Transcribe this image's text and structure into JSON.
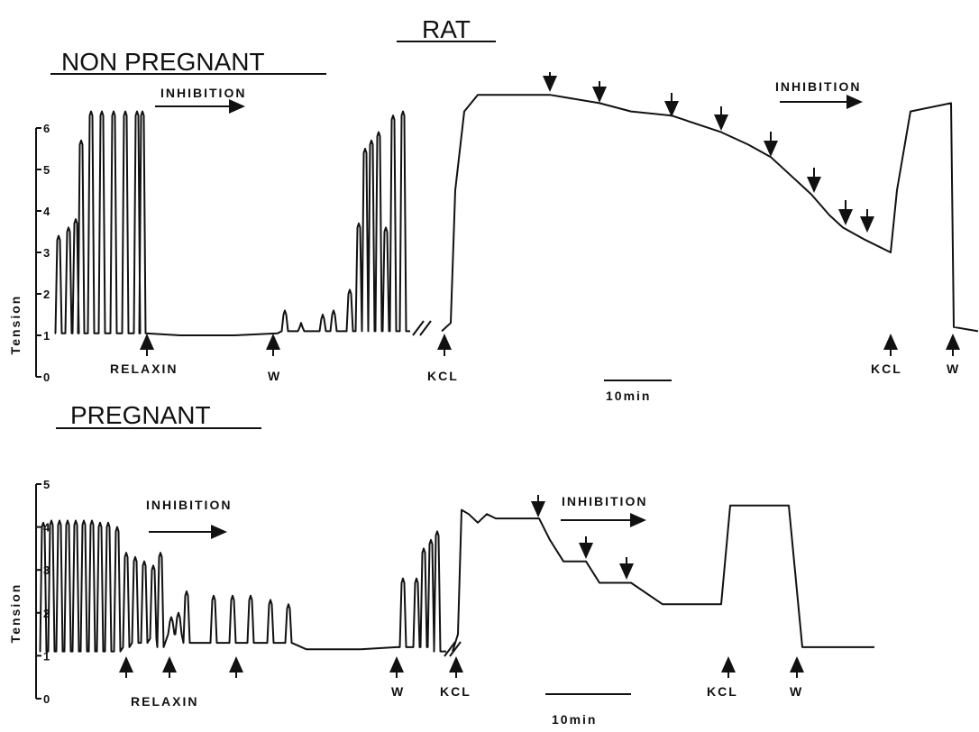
{
  "title": "RAT",
  "panels": [
    {
      "title": "NON PREGNANT",
      "y_label": "Tension",
      "yticks": [
        0,
        1,
        2,
        3,
        4,
        5,
        6
      ],
      "annotations": [
        "INHIBITION",
        "INHIBITION"
      ],
      "markers": [
        "RELAXIN",
        "W",
        "KCL",
        "KCL",
        "W"
      ],
      "scale_bar": "10min"
    },
    {
      "title": "PREGNANT",
      "y_label": "Tension",
      "yticks": [
        0,
        1,
        2,
        3,
        4,
        5
      ],
      "annotations": [
        "INHIBITION",
        "INHIBITION"
      ],
      "markers": [
        "RELAXIN",
        "W",
        "KCL",
        "KCL",
        "W"
      ],
      "scale_bar": "10min"
    }
  ]
}
